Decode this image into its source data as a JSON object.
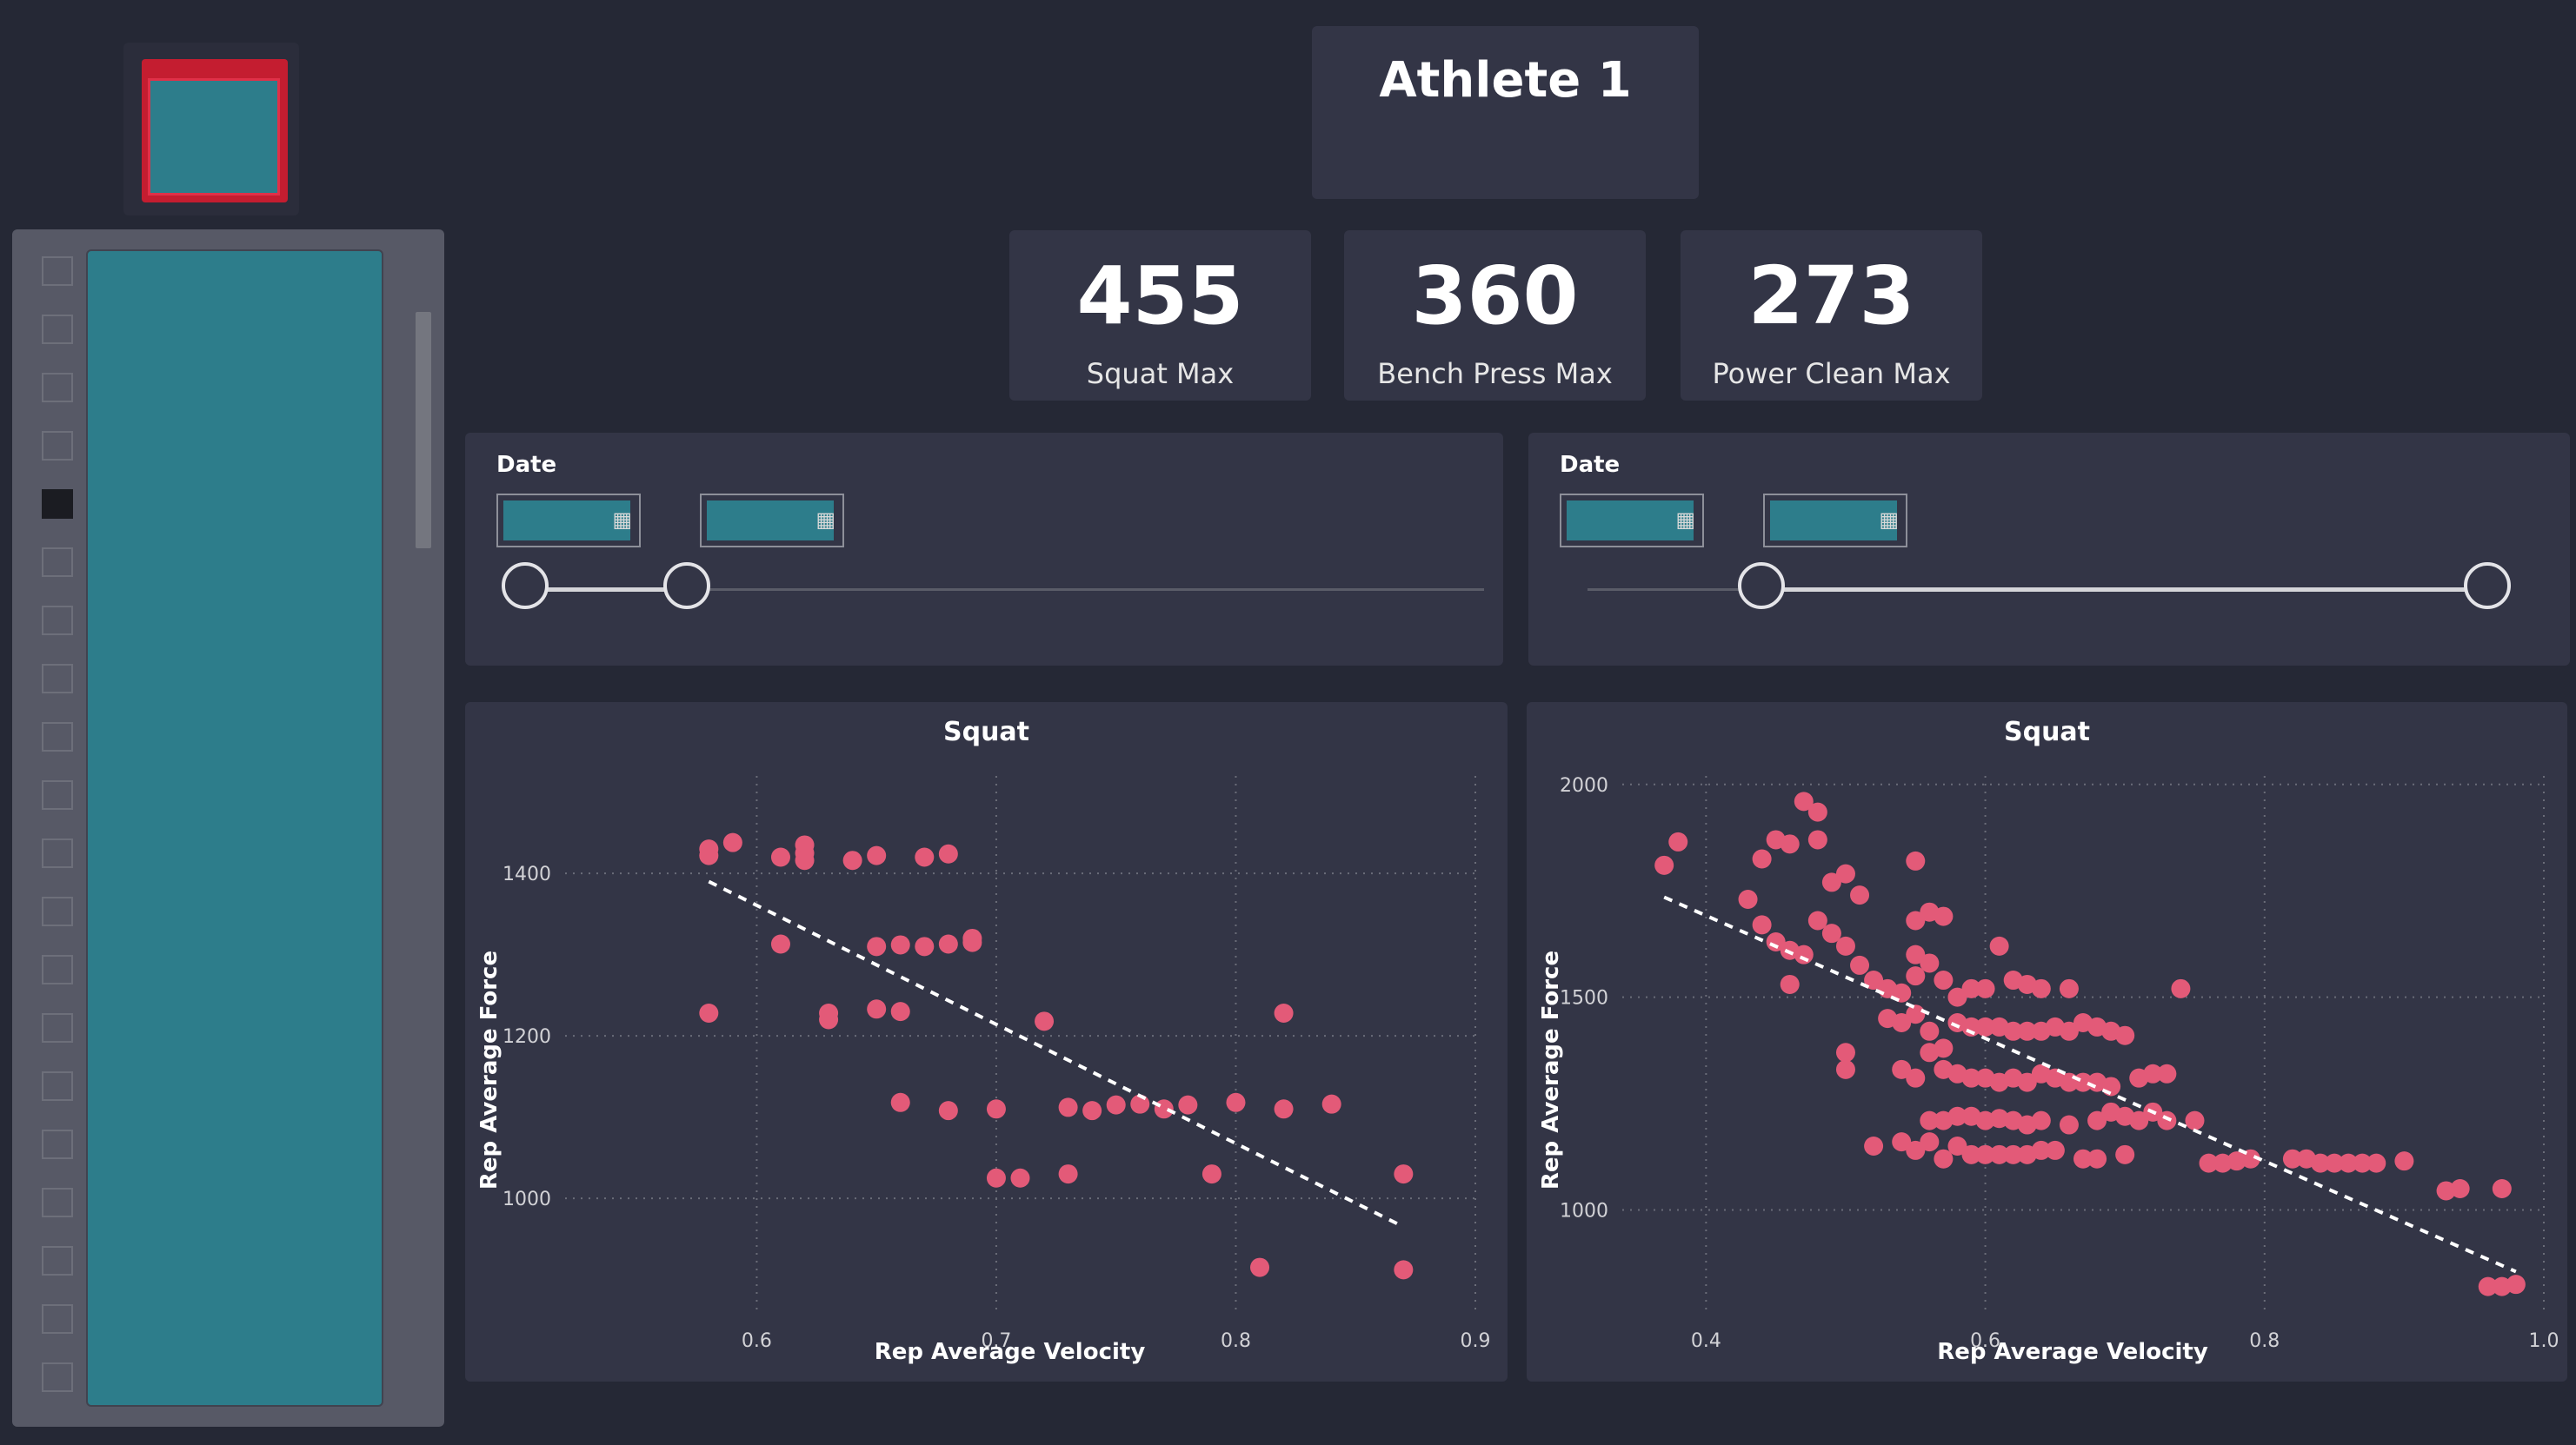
{
  "header": {
    "athlete": "Athlete 1"
  },
  "kpis": [
    {
      "value": "455",
      "label": "Squat Max"
    },
    {
      "value": "360",
      "label": "Bench Press Max"
    },
    {
      "value": "273",
      "label": "Power Clean Max"
    }
  ],
  "filters": [
    {
      "label": "Date",
      "calendar_icon": "calendar-icon",
      "range": [
        0.0,
        0.17
      ]
    },
    {
      "label": "Date",
      "calendar_icon": "calendar-icon",
      "range": [
        0.18,
        1.0
      ]
    }
  ],
  "sidebar": {
    "checked_index": 4,
    "item_count": 20
  },
  "colors": {
    "point": "#e35a78",
    "background": "#252835",
    "card": "#333546",
    "accent": "#2d7d8b"
  },
  "chart_data": [
    {
      "type": "scatter",
      "title": "Squat",
      "xlabel": "Rep Average Velocity",
      "ylabel": "Rep Average Force",
      "xlim": [
        0.52,
        0.9
      ],
      "ylim": [
        860,
        1520
      ],
      "xticks": [
        0.6,
        0.7,
        0.8,
        0.9
      ],
      "xtick_labels": [
        "0.6",
        "0.7",
        "0.8",
        "0.9"
      ],
      "yticks": [
        1000,
        1200,
        1400
      ],
      "ytick_labels": [
        "1000",
        "1200",
        "1400"
      ],
      "grid": true,
      "trendline": [
        [
          0.58,
          1390
        ],
        [
          0.87,
          965
        ]
      ],
      "points": [
        [
          0.58,
          1430
        ],
        [
          0.58,
          1422
        ],
        [
          0.59,
          1438
        ],
        [
          0.61,
          1420
        ],
        [
          0.62,
          1435
        ],
        [
          0.62,
          1425
        ],
        [
          0.62,
          1416
        ],
        [
          0.64,
          1416
        ],
        [
          0.65,
          1422
        ],
        [
          0.67,
          1420
        ],
        [
          0.68,
          1424
        ],
        [
          0.61,
          1313
        ],
        [
          0.65,
          1310
        ],
        [
          0.66,
          1312
        ],
        [
          0.67,
          1310
        ],
        [
          0.68,
          1313
        ],
        [
          0.69,
          1315
        ],
        [
          0.69,
          1320
        ],
        [
          0.58,
          1228
        ],
        [
          0.63,
          1228
        ],
        [
          0.63,
          1220
        ],
        [
          0.65,
          1233
        ],
        [
          0.66,
          1230
        ],
        [
          0.72,
          1218
        ],
        [
          0.82,
          1228
        ],
        [
          0.66,
          1118
        ],
        [
          0.68,
          1108
        ],
        [
          0.7,
          1110
        ],
        [
          0.73,
          1112
        ],
        [
          0.74,
          1108
        ],
        [
          0.75,
          1115
        ],
        [
          0.76,
          1116
        ],
        [
          0.77,
          1110
        ],
        [
          0.78,
          1115
        ],
        [
          0.8,
          1118
        ],
        [
          0.82,
          1110
        ],
        [
          0.84,
          1116
        ],
        [
          0.7,
          1025
        ],
        [
          0.71,
          1025
        ],
        [
          0.73,
          1030
        ],
        [
          0.79,
          1030
        ],
        [
          0.87,
          1030
        ],
        [
          0.81,
          915
        ],
        [
          0.87,
          912
        ]
      ]
    },
    {
      "type": "scatter",
      "title": "Squat",
      "xlabel": "Rep Average Velocity",
      "ylabel": "Rep Average Force",
      "xlim": [
        0.34,
        1.0
      ],
      "ylim": [
        760,
        2020
      ],
      "xticks": [
        0.4,
        0.6,
        0.8,
        1.0
      ],
      "xtick_labels": [
        "0.4",
        "0.6",
        "0.8",
        "1.0"
      ],
      "yticks": [
        1000,
        1500,
        2000
      ],
      "ytick_labels": [
        "1000",
        "1500",
        "2000"
      ],
      "grid": true,
      "trendline": [
        [
          0.37,
          1735
        ],
        [
          0.98,
          855
        ]
      ],
      "points": [
        [
          0.37,
          1810
        ],
        [
          0.38,
          1865
        ],
        [
          0.43,
          1730
        ],
        [
          0.44,
          1825
        ],
        [
          0.45,
          1870
        ],
        [
          0.46,
          1860
        ],
        [
          0.47,
          1960
        ],
        [
          0.48,
          1935
        ],
        [
          0.48,
          1870
        ],
        [
          0.49,
          1770
        ],
        [
          0.5,
          1790
        ],
        [
          0.51,
          1740
        ],
        [
          0.55,
          1820
        ],
        [
          0.44,
          1670
        ],
        [
          0.45,
          1630
        ],
        [
          0.46,
          1610
        ],
        [
          0.47,
          1600
        ],
        [
          0.48,
          1680
        ],
        [
          0.49,
          1650
        ],
        [
          0.5,
          1620
        ],
        [
          0.51,
          1575
        ],
        [
          0.52,
          1540
        ],
        [
          0.53,
          1520
        ],
        [
          0.54,
          1510
        ],
        [
          0.55,
          1550
        ],
        [
          0.55,
          1600
        ],
        [
          0.56,
          1580
        ],
        [
          0.57,
          1540
        ],
        [
          0.58,
          1500
        ],
        [
          0.59,
          1520
        ],
        [
          0.55,
          1680
        ],
        [
          0.56,
          1700
        ],
        [
          0.57,
          1690
        ],
        [
          0.6,
          1520
        ],
        [
          0.61,
          1620
        ],
        [
          0.62,
          1540
        ],
        [
          0.63,
          1530
        ],
        [
          0.64,
          1520
        ],
        [
          0.66,
          1520
        ],
        [
          0.74,
          1520
        ],
        [
          0.46,
          1530
        ],
        [
          0.53,
          1450
        ],
        [
          0.54,
          1440
        ],
        [
          0.55,
          1460
        ],
        [
          0.56,
          1420
        ],
        [
          0.57,
          1380
        ],
        [
          0.58,
          1440
        ],
        [
          0.59,
          1430
        ],
        [
          0.6,
          1430
        ],
        [
          0.61,
          1430
        ],
        [
          0.62,
          1420
        ],
        [
          0.63,
          1420
        ],
        [
          0.64,
          1420
        ],
        [
          0.65,
          1430
        ],
        [
          0.66,
          1420
        ],
        [
          0.67,
          1440
        ],
        [
          0.68,
          1430
        ],
        [
          0.69,
          1420
        ],
        [
          0.7,
          1410
        ],
        [
          0.5,
          1370
        ],
        [
          0.5,
          1330
        ],
        [
          0.54,
          1330
        ],
        [
          0.55,
          1310
        ],
        [
          0.56,
          1370
        ],
        [
          0.57,
          1330
        ],
        [
          0.58,
          1320
        ],
        [
          0.59,
          1310
        ],
        [
          0.6,
          1310
        ],
        [
          0.61,
          1300
        ],
        [
          0.62,
          1310
        ],
        [
          0.63,
          1300
        ],
        [
          0.64,
          1320
        ],
        [
          0.65,
          1310
        ],
        [
          0.66,
          1300
        ],
        [
          0.67,
          1300
        ],
        [
          0.68,
          1300
        ],
        [
          0.69,
          1290
        ],
        [
          0.71,
          1310
        ],
        [
          0.72,
          1320
        ],
        [
          0.73,
          1320
        ],
        [
          0.56,
          1210
        ],
        [
          0.57,
          1210
        ],
        [
          0.58,
          1220
        ],
        [
          0.59,
          1220
        ],
        [
          0.6,
          1210
        ],
        [
          0.61,
          1215
        ],
        [
          0.62,
          1210
        ],
        [
          0.63,
          1200
        ],
        [
          0.64,
          1210
        ],
        [
          0.66,
          1200
        ],
        [
          0.68,
          1210
        ],
        [
          0.69,
          1230
        ],
        [
          0.7,
          1220
        ],
        [
          0.71,
          1210
        ],
        [
          0.52,
          1150
        ],
        [
          0.54,
          1160
        ],
        [
          0.55,
          1140
        ],
        [
          0.56,
          1160
        ],
        [
          0.57,
          1120
        ],
        [
          0.58,
          1150
        ],
        [
          0.59,
          1130
        ],
        [
          0.6,
          1130
        ],
        [
          0.61,
          1130
        ],
        [
          0.62,
          1130
        ],
        [
          0.63,
          1130
        ],
        [
          0.64,
          1140
        ],
        [
          0.65,
          1140
        ],
        [
          0.67,
          1120
        ],
        [
          0.68,
          1120
        ],
        [
          0.7,
          1130
        ],
        [
          0.72,
          1230
        ],
        [
          0.73,
          1210
        ],
        [
          0.75,
          1210
        ],
        [
          0.76,
          1110
        ],
        [
          0.77,
          1110
        ],
        [
          0.78,
          1115
        ],
        [
          0.79,
          1120
        ],
        [
          0.82,
          1120
        ],
        [
          0.83,
          1120
        ],
        [
          0.84,
          1110
        ],
        [
          0.85,
          1110
        ],
        [
          0.86,
          1110
        ],
        [
          0.87,
          1110
        ],
        [
          0.88,
          1110
        ],
        [
          0.9,
          1115
        ],
        [
          0.93,
          1045
        ],
        [
          0.94,
          1050
        ],
        [
          0.97,
          1050
        ],
        [
          0.96,
          820
        ],
        [
          0.97,
          820
        ],
        [
          0.98,
          825
        ]
      ]
    }
  ]
}
